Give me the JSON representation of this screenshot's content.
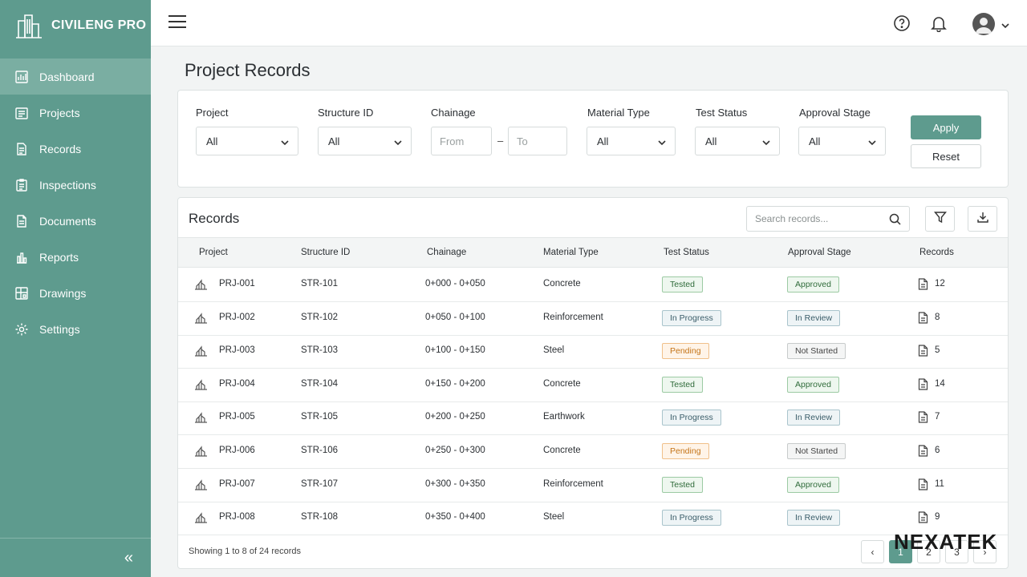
{
  "brand": {
    "name": "CIVILENG PRO"
  },
  "sidebar": {
    "items": [
      {
        "label": "Dashboard",
        "icon": "dashboard-icon",
        "active": true
      },
      {
        "label": "Projects",
        "icon": "projects-icon"
      },
      {
        "label": "Records",
        "icon": "records-icon"
      },
      {
        "label": "Inspections",
        "icon": "inspections-icon"
      },
      {
        "label": "Documents",
        "icon": "documents-icon"
      },
      {
        "label": "Reports",
        "icon": "reports-icon"
      },
      {
        "label": "Drawings",
        "icon": "drawings-icon"
      },
      {
        "label": "Settings",
        "icon": "settings-icon"
      }
    ],
    "collapse_glyph": "«"
  },
  "page": {
    "title": "Project Records"
  },
  "filters": {
    "project": {
      "label": "Project",
      "value": "All"
    },
    "structure": {
      "label": "Structure ID",
      "value": "All"
    },
    "chainage": {
      "label": "Chainage",
      "from_placeholder": "From",
      "to_placeholder": "To",
      "separator": "–"
    },
    "material": {
      "label": "Material Type",
      "value": "All"
    },
    "test_status": {
      "label": "Test Status",
      "value": "All"
    },
    "approval": {
      "label": "Approval Stage",
      "value": "All"
    },
    "apply_label": "Apply",
    "reset_label": "Reset"
  },
  "records": {
    "title": "Records",
    "search_placeholder": "Search records...",
    "columns": [
      "Project",
      "Structure ID",
      "Chainage",
      "Material Type",
      "Test Status",
      "Approval Stage",
      "Records"
    ],
    "rows": [
      {
        "project": "PRJ-001",
        "structure": "STR-101",
        "chainage": "0+000 - 0+050",
        "material": "Concrete",
        "test": "Tested",
        "test_style": "green",
        "approval": "Approved",
        "approval_style": "green",
        "count": "12"
      },
      {
        "project": "PRJ-002",
        "structure": "STR-102",
        "chainage": "0+050 - 0+100",
        "material": "Reinforcement",
        "test": "In Progress",
        "test_style": "blue",
        "approval": "In Review",
        "approval_style": "blue",
        "count": "8"
      },
      {
        "project": "PRJ-003",
        "structure": "STR-103",
        "chainage": "0+100 - 0+150",
        "material": "Steel",
        "test": "Pending",
        "test_style": "orange",
        "approval": "Not Started",
        "approval_style": "gray",
        "count": "5"
      },
      {
        "project": "PRJ-004",
        "structure": "STR-104",
        "chainage": "0+150 - 0+200",
        "material": "Concrete",
        "test": "Tested",
        "test_style": "green",
        "approval": "Approved",
        "approval_style": "green",
        "count": "14"
      },
      {
        "project": "PRJ-005",
        "structure": "STR-105",
        "chainage": "0+200 - 0+250",
        "material": "Earthwork",
        "test": "In Progress",
        "test_style": "blue",
        "approval": "In Review",
        "approval_style": "blue",
        "count": "7"
      },
      {
        "project": "PRJ-006",
        "structure": "STR-106",
        "chainage": "0+250 - 0+300",
        "material": "Concrete",
        "test": "Pending",
        "test_style": "orange",
        "approval": "Not Started",
        "approval_style": "gray",
        "count": "6"
      },
      {
        "project": "PRJ-007",
        "structure": "STR-107",
        "chainage": "0+300 - 0+350",
        "material": "Reinforcement",
        "test": "Tested",
        "test_style": "green",
        "approval": "Approved",
        "approval_style": "green",
        "count": "11"
      },
      {
        "project": "PRJ-008",
        "structure": "STR-108",
        "chainage": "0+350 - 0+400",
        "material": "Steel",
        "test": "In Progress",
        "test_style": "blue",
        "approval": "In Review",
        "approval_style": "blue",
        "count": "9"
      }
    ],
    "footer": "Showing 1 to 8 of 24 records",
    "pagination": {
      "prev": "‹",
      "pages": [
        "1",
        "2",
        "3"
      ],
      "current": "1",
      "next": "›"
    }
  },
  "watermark": "NEXATEK",
  "colors": {
    "accent": "#5e9b8e",
    "sidebar_active": "#7aaea2"
  }
}
